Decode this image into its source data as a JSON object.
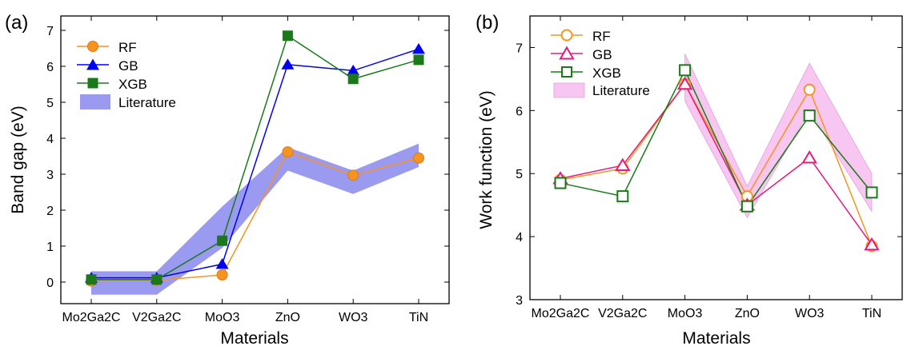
{
  "chart_data": [
    {
      "type": "line",
      "panel_label": "(a)",
      "xlabel": "Materials",
      "ylabel": "Band gap (eV)",
      "categories": [
        "Mo2Ga2C",
        "V2Ga2C",
        "MoO3",
        "ZnO",
        "WO3",
        "TiN"
      ],
      "ylim": [
        -0.6,
        7.4
      ],
      "yticks": [
        0,
        1,
        2,
        3,
        4,
        5,
        6,
        7
      ],
      "grid": false,
      "legend_position": "top-left",
      "band": {
        "name": "Literature",
        "lower": [
          -0.35,
          -0.35,
          0.95,
          3.1,
          2.45,
          3.2
        ],
        "upper": [
          0.3,
          0.3,
          2.1,
          3.75,
          3.1,
          3.85
        ]
      },
      "series": [
        {
          "name": "RF",
          "values": [
            0.03,
            0.05,
            0.2,
            3.62,
            2.97,
            3.45
          ]
        },
        {
          "name": "GB",
          "values": [
            0.12,
            0.12,
            0.5,
            6.05,
            5.88,
            6.48
          ]
        },
        {
          "name": "XGB",
          "values": [
            0.07,
            0.07,
            1.15,
            6.85,
            5.65,
            6.18
          ]
        }
      ]
    },
    {
      "type": "line",
      "panel_label": "(b)",
      "xlabel": "Materials",
      "ylabel": "Work function (eV)",
      "categories": [
        "Mo2Ga2C",
        "V2Ga2C",
        "MoO3",
        "ZnO",
        "WO3",
        "TiN"
      ],
      "ylim": [
        3,
        7.5
      ],
      "yticks": [
        3,
        4,
        5,
        6,
        7
      ],
      "grid": false,
      "legend_position": "top-left",
      "band": {
        "name": "Literature",
        "lower": [
          null,
          null,
          6.15,
          4.3,
          6.0,
          4.4
        ],
        "upper": [
          null,
          null,
          6.9,
          4.8,
          6.75,
          5.0
        ]
      },
      "series": [
        {
          "name": "RF",
          "values": [
            4.9,
            5.08,
            6.42,
            4.64,
            6.33,
            3.85
          ]
        },
        {
          "name": "GB",
          "values": [
            4.92,
            5.13,
            6.42,
            4.5,
            5.25,
            3.87
          ]
        },
        {
          "name": "XGB",
          "values": [
            4.85,
            4.64,
            6.64,
            4.48,
            5.92,
            4.7
          ]
        }
      ]
    }
  ],
  "colors": {
    "RF": "#f7931e",
    "GB_a": "#0000f5",
    "XGB": "#1a7a1a",
    "GB_b": "#e6197f",
    "band_a": "#9a9af0",
    "band_b": "#f7c6f1"
  }
}
